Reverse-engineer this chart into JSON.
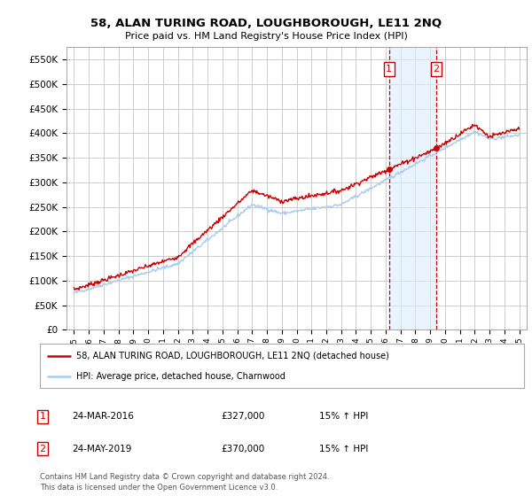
{
  "title": "58, ALAN TURING ROAD, LOUGHBOROUGH, LE11 2NQ",
  "subtitle": "Price paid vs. HM Land Registry's House Price Index (HPI)",
  "legend_line1": "58, ALAN TURING ROAD, LOUGHBOROUGH, LE11 2NQ (detached house)",
  "legend_line2": "HPI: Average price, detached house, Charnwood",
  "annotation1": {
    "label": "1",
    "date": "24-MAR-2016",
    "price": "£327,000",
    "hpi": "15% ↑ HPI"
  },
  "annotation2": {
    "label": "2",
    "date": "24-MAY-2019",
    "price": "£370,000",
    "hpi": "15% ↑ HPI"
  },
  "copyright": "Contains HM Land Registry data © Crown copyright and database right 2024.\nThis data is licensed under the Open Government Licence v3.0.",
  "red_color": "#cc0000",
  "blue_color": "#aaccee",
  "grid_color": "#cccccc",
  "vline_color": "#cc0000",
  "shade_color": "#ddeeff",
  "ylim": [
    0,
    575000
  ],
  "yticks": [
    0,
    50000,
    100000,
    150000,
    200000,
    250000,
    300000,
    350000,
    400000,
    450000,
    500000,
    550000
  ],
  "xlim_start": 1994.5,
  "xlim_end": 2025.5,
  "sale1_x": 2016.23,
  "sale2_x": 2019.4,
  "sale1_y": 327000,
  "sale2_y": 370000
}
